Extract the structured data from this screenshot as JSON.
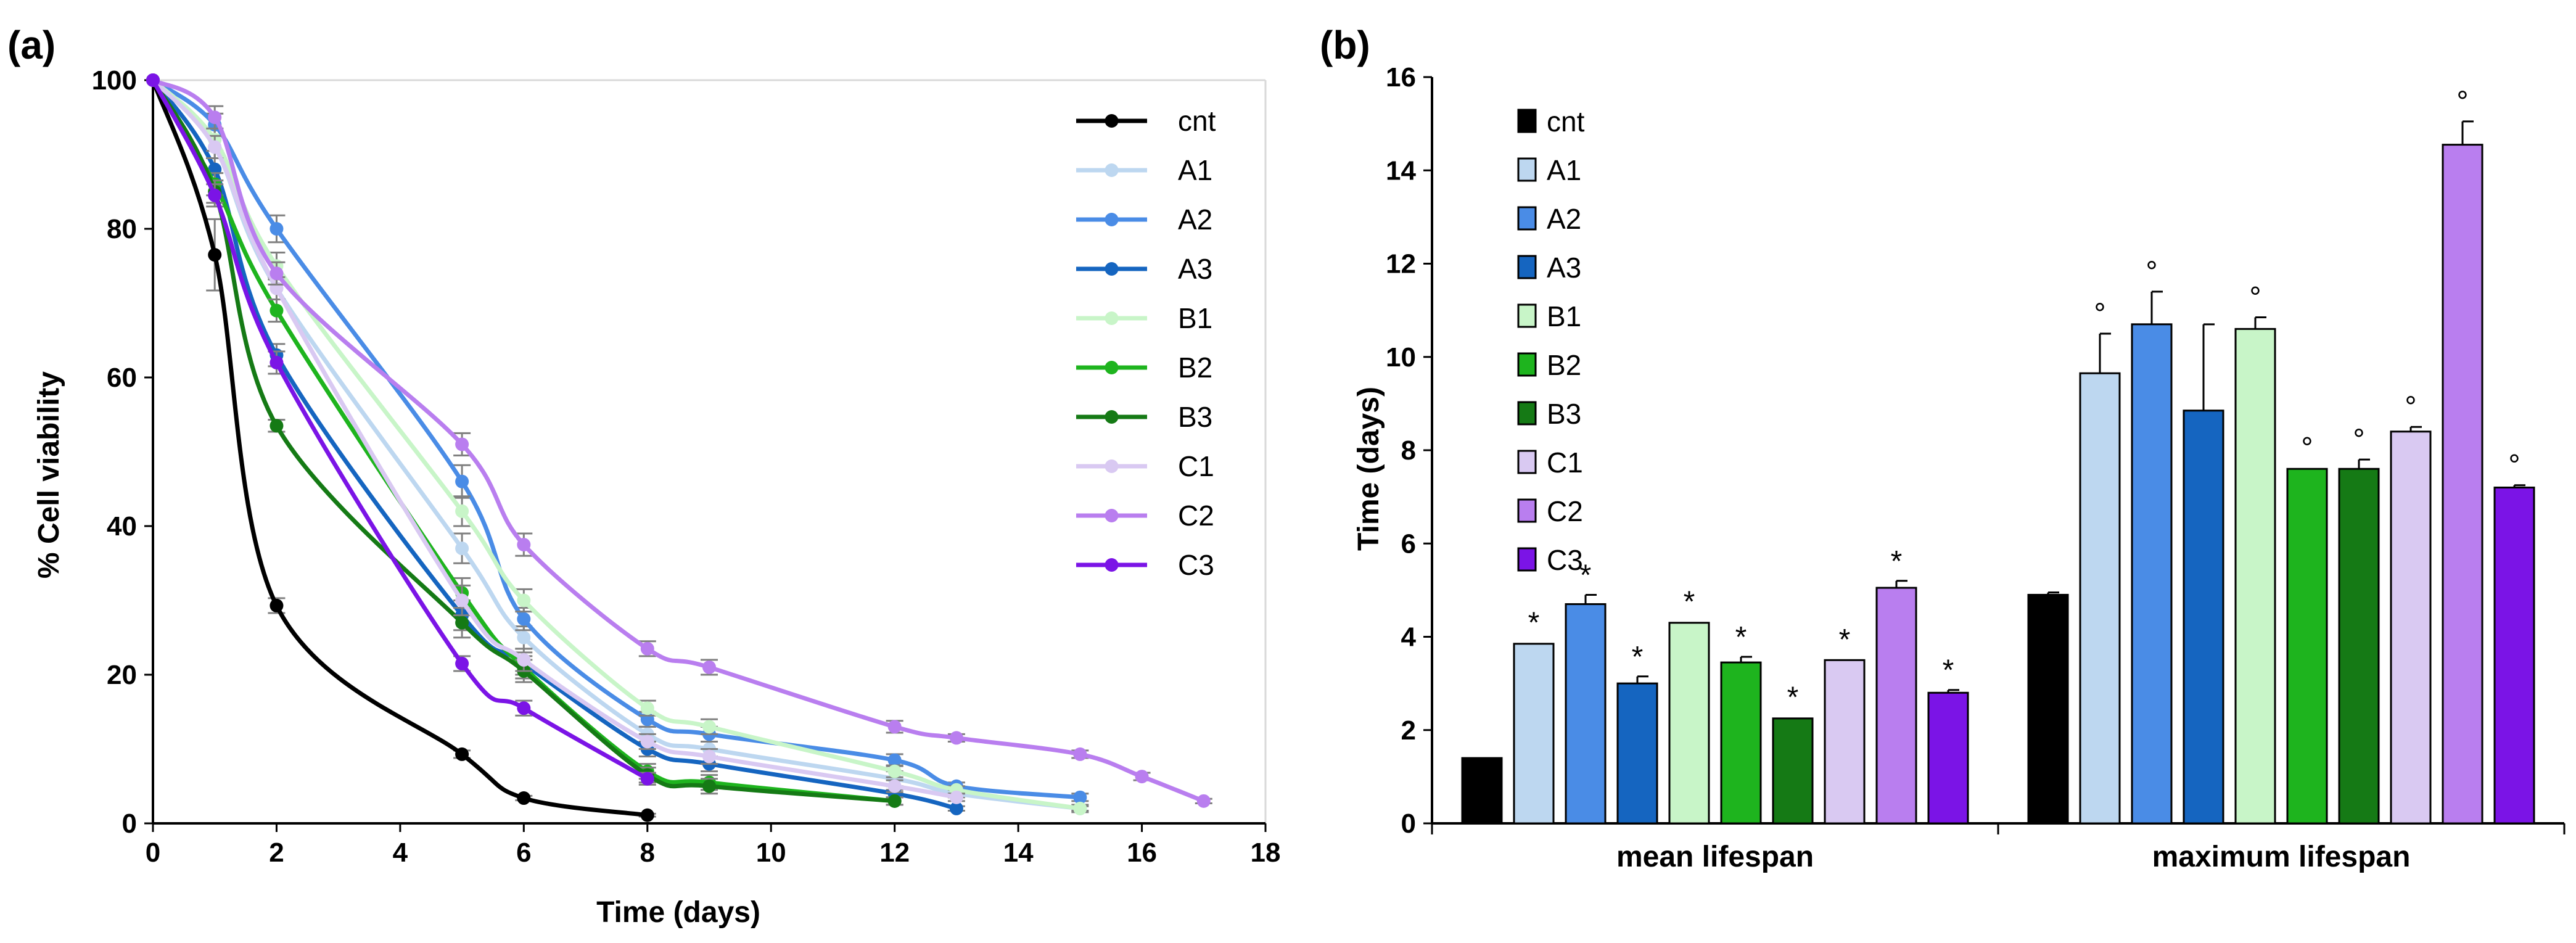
{
  "chart_data": [
    {
      "panel_label": "(a)",
      "type": "line",
      "xlabel": "Time (days)",
      "ylabel": "% Cell viability",
      "xlim": [
        0,
        18
      ],
      "ylim": [
        0,
        100
      ],
      "xticks": [
        0,
        2,
        4,
        6,
        8,
        10,
        12,
        14,
        16,
        18
      ],
      "yticks": [
        0,
        20,
        40,
        60,
        80,
        100
      ],
      "legend_position": "top-right",
      "series": [
        {
          "name": "cnt",
          "color": "#000000",
          "points": [
            [
              0,
              100
            ],
            [
              1,
              76.5
            ],
            [
              2,
              29.3
            ],
            [
              5,
              9.3
            ],
            [
              6,
              3.4
            ],
            [
              8,
              1.1
            ]
          ],
          "errors": [
            0,
            4.8,
            1.0,
            0.5,
            0.3,
            0.2
          ]
        },
        {
          "name": "A1",
          "color": "#BDD7F0",
          "points": [
            [
              0,
              100
            ],
            [
              1,
              91
            ],
            [
              2,
              72
            ],
            [
              5,
              37
            ],
            [
              6,
              25
            ],
            [
              8,
              12
            ],
            [
              9,
              10
            ],
            [
              12,
              6
            ],
            [
              13,
              4
            ],
            [
              15,
              2
            ]
          ],
          "errors": [
            0,
            1.5,
            1.5,
            2,
            1.5,
            1,
            1,
            1,
            0.5,
            0.5
          ]
        },
        {
          "name": "A2",
          "color": "#4A8CE6",
          "points": [
            [
              0,
              100
            ],
            [
              1,
              94
            ],
            [
              2,
              80
            ],
            [
              5,
              46
            ],
            [
              6,
              27.5
            ],
            [
              8,
              14
            ],
            [
              9,
              12
            ],
            [
              12,
              8.5
            ],
            [
              13,
              5
            ],
            [
              15,
              3.5
            ]
          ],
          "errors": [
            0,
            1.5,
            1.8,
            2.2,
            1.5,
            1,
            1,
            0.8,
            0.5,
            0.5
          ]
        },
        {
          "name": "A3",
          "color": "#1565C0",
          "points": [
            [
              0,
              100
            ],
            [
              1,
              88
            ],
            [
              2,
              63
            ],
            [
              5,
              28
            ],
            [
              6,
              21.5
            ],
            [
              8,
              10
            ],
            [
              9,
              8
            ],
            [
              12,
              4
            ],
            [
              13,
              2
            ]
          ],
          "errors": [
            0,
            1.5,
            1.5,
            2,
            1.5,
            1,
            1,
            0.5,
            0.3
          ]
        },
        {
          "name": "B1",
          "color": "#C8F5C8",
          "points": [
            [
              0,
              100
            ],
            [
              1,
              92
            ],
            [
              2,
              75
            ],
            [
              5,
              42
            ],
            [
              6,
              30
            ],
            [
              8,
              15.5
            ],
            [
              9,
              13
            ],
            [
              12,
              7
            ],
            [
              13,
              4.5
            ],
            [
              15,
              2
            ]
          ],
          "errors": [
            0,
            1.5,
            1.8,
            2,
            1.5,
            1,
            1,
            0.8,
            0.5,
            0.3
          ]
        },
        {
          "name": "B2",
          "color": "#1EB41E",
          "points": [
            [
              0,
              100
            ],
            [
              1,
              86
            ],
            [
              2,
              69
            ],
            [
              5,
              31
            ],
            [
              6,
              21
            ],
            [
              8,
              7
            ],
            [
              9,
              5.5
            ],
            [
              12,
              3
            ]
          ],
          "errors": [
            0,
            1.5,
            1.5,
            2,
            1.5,
            1,
            1,
            0.5
          ]
        },
        {
          "name": "B3",
          "color": "#157A15",
          "points": [
            [
              0,
              100
            ],
            [
              1,
              85
            ],
            [
              2,
              53.5
            ],
            [
              5,
              27
            ],
            [
              6,
              20.5
            ],
            [
              8,
              6.5
            ],
            [
              9,
              5
            ],
            [
              12,
              3
            ]
          ],
          "errors": [
            0,
            1.5,
            0.8,
            2,
            1.5,
            1,
            1,
            0.5
          ]
        },
        {
          "name": "C1",
          "color": "#D9C9F2",
          "points": [
            [
              0,
              100
            ],
            [
              1,
              91
            ],
            [
              2,
              72
            ],
            [
              5,
              30
            ],
            [
              6,
              22
            ],
            [
              8,
              11
            ],
            [
              9,
              9
            ],
            [
              12,
              5
            ],
            [
              13,
              3.5
            ]
          ],
          "errors": [
            0,
            1.5,
            1.5,
            2,
            1.5,
            1,
            1,
            0.8,
            0.5
          ]
        },
        {
          "name": "C2",
          "color": "#B97EEF",
          "points": [
            [
              0,
              100
            ],
            [
              1,
              95
            ],
            [
              2,
              74
            ],
            [
              5,
              51
            ],
            [
              6,
              37.5
            ],
            [
              8,
              23.5
            ],
            [
              9,
              21
            ],
            [
              12,
              13
            ],
            [
              13,
              11.5
            ],
            [
              15,
              9.3
            ],
            [
              16,
              6.3
            ],
            [
              17,
              3
            ]
          ],
          "errors": [
            0,
            1.5,
            1.5,
            1.5,
            1.5,
            1,
            1,
            0.8,
            0.5,
            0.5,
            0.5,
            0.3
          ]
        },
        {
          "name": "C3",
          "color": "#7B14E6",
          "points": [
            [
              0,
              100
            ],
            [
              1,
              84.5
            ],
            [
              2,
              62
            ],
            [
              5,
              21.5
            ],
            [
              6,
              15.5
            ],
            [
              8,
              6
            ]
          ],
          "errors": [
            0,
            1.5,
            1.5,
            1,
            1,
            0.8
          ]
        }
      ]
    },
    {
      "panel_label": "(b)",
      "type": "bar",
      "ylabel": "Time (days)",
      "ylim": [
        0,
        16
      ],
      "yticks": [
        0,
        2,
        4,
        6,
        8,
        10,
        12,
        14,
        16
      ],
      "categories": [
        "mean lifespan",
        "maximum lifespan"
      ],
      "legend_position": "top-left",
      "series": [
        {
          "name": "cnt",
          "color": "#000000",
          "values": [
            1.4,
            4.9
          ],
          "errors": [
            0.02,
            0.05
          ],
          "markers": [
            "",
            ""
          ]
        },
        {
          "name": "A1",
          "color": "#BDD7F0",
          "values": [
            3.85,
            9.65
          ],
          "errors": [
            0.03,
            0.85
          ],
          "markers": [
            "*",
            "°"
          ]
        },
        {
          "name": "A2",
          "color": "#4A8CE6",
          "values": [
            4.7,
            10.7
          ],
          "errors": [
            0.2,
            0.7
          ],
          "markers": [
            "*",
            "°"
          ]
        },
        {
          "name": "A3",
          "color": "#1565C0",
          "values": [
            3.0,
            8.85
          ],
          "errors": [
            0.15,
            1.85
          ],
          "markers": [
            "*",
            ""
          ]
        },
        {
          "name": "B1",
          "color": "#C8F5C8",
          "values": [
            4.3,
            10.6
          ],
          "errors": [
            0.03,
            0.25
          ],
          "markers": [
            "*",
            "°"
          ]
        },
        {
          "name": "B2",
          "color": "#1EB41E",
          "values": [
            3.45,
            7.6
          ],
          "errors": [
            0.12,
            0.02
          ],
          "markers": [
            "*",
            "°"
          ]
        },
        {
          "name": "B3",
          "color": "#157A15",
          "values": [
            2.25,
            7.6
          ],
          "errors": [
            0.03,
            0.2
          ],
          "markers": [
            "*",
            "°"
          ]
        },
        {
          "name": "C1",
          "color": "#D9C9F2",
          "values": [
            3.5,
            8.4
          ],
          "errors": [
            0.02,
            0.1
          ],
          "markers": [
            "*",
            "°"
          ]
        },
        {
          "name": "C2",
          "color": "#B97EEF",
          "values": [
            5.05,
            14.55
          ],
          "errors": [
            0.15,
            0.5
          ],
          "markers": [
            "*",
            "°"
          ]
        },
        {
          "name": "C3",
          "color": "#7B14E6",
          "values": [
            2.8,
            7.2
          ],
          "errors": [
            0.06,
            0.05
          ],
          "markers": [
            "*",
            "°"
          ]
        }
      ]
    }
  ]
}
